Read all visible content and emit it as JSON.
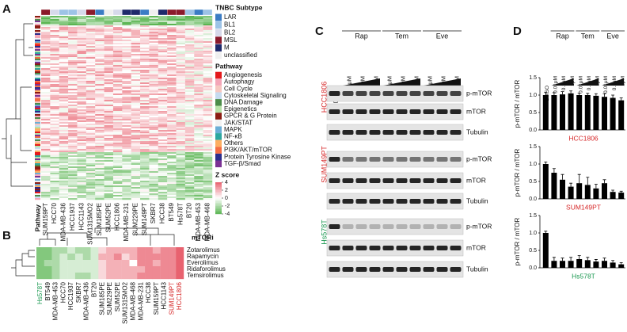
{
  "panel_a": {
    "letter": "A",
    "row_label": "Pathway",
    "columns": [
      "SUM159PT",
      "HCC70",
      "MDA-MB-436",
      "HCC1937",
      "HCC1143",
      "SUM1315MO2",
      "SUM185PE",
      "SUM52PE",
      "HCC1806",
      "MDA-MB-231",
      "SUM229PE",
      "SUM149PT",
      "SKBR7",
      "HCC38",
      "BT549",
      "Hs578T",
      "BT20",
      "MDA-MB-453",
      "MDA-MB-468"
    ],
    "column_subtypes": [
      "MSL",
      "BL2",
      "BL1",
      "BL1",
      "BL2",
      "MSL",
      "LAR",
      "unclassified",
      "BL2",
      "M",
      "M",
      "LAR",
      "unclassified",
      "M",
      "MSL",
      "MSL",
      "BL1",
      "LAR",
      "BL1"
    ],
    "subtype_legend": {
      "title": "TNBC Subtype",
      "items": [
        {
          "label": "LAR",
          "color": "#3b7cc4"
        },
        {
          "label": "BL1",
          "color": "#9dc3e6"
        },
        {
          "label": "BL2",
          "color": "#d6d9ea"
        },
        {
          "label": "MSL",
          "color": "#8b1a2b"
        },
        {
          "label": "M",
          "color": "#1f2a6b"
        },
        {
          "label": "unclassified",
          "color": "#efefef"
        }
      ]
    },
    "pathway_legend": {
      "title": "Pathway",
      "items": [
        {
          "label": "Angiogenesis",
          "color": "#e41a1c"
        },
        {
          "label": "Autophagy",
          "color": "#f4a6b8"
        },
        {
          "label": "Cell Cycle",
          "color": "#f6c7c0"
        },
        {
          "label": "Cytoskeletal Signaling",
          "color": "#c6dbef"
        },
        {
          "label": "DNA Damage",
          "color": "#4c8c4a"
        },
        {
          "label": "Epigenetics",
          "color": "#b7e2a8"
        },
        {
          "label": "GPCR & G Protein",
          "color": "#8c1c13"
        },
        {
          "label": "JAK/STAT",
          "color": "#f2f2f2"
        },
        {
          "label": "MAPK",
          "color": "#6baed6"
        },
        {
          "label": "NF-κB",
          "color": "#2ca7a0"
        },
        {
          "label": "Others",
          "color": "#fdae61"
        },
        {
          "label": "PI3K/AKT/mTOR",
          "color": "#f46d43"
        },
        {
          "label": "Protein Tyrosine Kinase",
          "color": "#2b2d8c"
        },
        {
          "label": "TGF-β/Smad",
          "color": "#7b3294"
        }
      ]
    },
    "zscore": {
      "title": "Z score",
      "ticks": [
        4,
        2,
        0,
        -2,
        -4
      ]
    }
  },
  "panel_b": {
    "letter": "B",
    "title": "mTORi",
    "columns": [
      {
        "label": "Hs578T",
        "color": "#1a9850"
      },
      {
        "label": "BT549"
      },
      {
        "label": "MDA-MB-453"
      },
      {
        "label": "HCC70"
      },
      {
        "label": "HCC1937"
      },
      {
        "label": "SKBR7"
      },
      {
        "label": "MDA-MB-436"
      },
      {
        "label": "BT20"
      },
      {
        "label": "SUM185PE"
      },
      {
        "label": "SUM229PE"
      },
      {
        "label": "SUM52PE"
      },
      {
        "label": "SUM1315MO2"
      },
      {
        "label": "MDA-MB-468"
      },
      {
        "label": "MDA-MB-231"
      },
      {
        "label": "HCC38"
      },
      {
        "label": "SUM159PT"
      },
      {
        "label": "HCC1143"
      },
      {
        "label": "SUM149PT",
        "color": "#d62728"
      },
      {
        "label": "HCC1806",
        "color": "#d62728"
      }
    ],
    "rows": [
      {
        "label": "Zotarolimus",
        "values": [
          -3,
          -3,
          -2,
          -2,
          -1,
          -2,
          -2,
          -1,
          1,
          2,
          2,
          2,
          2,
          3,
          3,
          2,
          3,
          3,
          4
        ]
      },
      {
        "label": "Rapamycin",
        "values": [
          -3,
          -3,
          -2,
          -1,
          -2,
          -1,
          -2,
          -1,
          2,
          2,
          3,
          1,
          2,
          3,
          3,
          3,
          3,
          3,
          4
        ]
      },
      {
        "label": "Everolimus",
        "values": [
          -3,
          -2,
          -2,
          -1,
          -1,
          -1,
          -1,
          -1,
          1,
          2,
          2,
          2,
          0,
          3,
          3,
          2,
          3,
          3,
          4
        ]
      },
      {
        "label": "Ridaforolimus",
        "values": [
          -3,
          -3,
          -2,
          -1,
          -1,
          -1,
          -1,
          -1,
          1,
          2,
          2,
          2,
          2,
          2,
          3,
          3,
          3,
          3,
          4
        ]
      },
      {
        "label": "Temsirolimus",
        "values": [
          -3,
          -3,
          -2,
          -1,
          -1,
          -2,
          -2,
          -1,
          1,
          2,
          2,
          2,
          2,
          3,
          3,
          3,
          3,
          3,
          4
        ]
      }
    ]
  },
  "panel_c": {
    "letter": "C",
    "control": "DMSO",
    "groups": [
      "Rap",
      "Tem",
      "Eve"
    ],
    "concentrations": [
      "0.01μM",
      "0.1μM",
      "1μM"
    ],
    "cell_lines": [
      {
        "label": "HCC1806",
        "color": "#d62728"
      },
      {
        "label": "SUM149PT",
        "color": "#d62728"
      },
      {
        "label": "Hs578T",
        "color": "#1a9850"
      }
    ],
    "blots": [
      "p-mTOR",
      "mTOR",
      "Tubulin"
    ]
  },
  "panel_d": {
    "letter": "D",
    "control": "DMSO",
    "groups": [
      "Rap",
      "Tem",
      "Eve"
    ],
    "concentrations": [
      "0.01μM",
      "0.1μM",
      "1μM"
    ],
    "y_label": "p-mTOR / mTOR",
    "ylim": [
      0,
      1.5
    ],
    "yticks": [
      {
        "value": 0,
        "label": "0.0"
      },
      {
        "value": 0.5,
        "label": "0.5"
      },
      {
        "value": 1,
        "label": "1.0"
      },
      {
        "value": 1.5,
        "label": "1.5"
      }
    ],
    "charts": [
      {
        "cell_line": "HCC1806",
        "color": "#d62728",
        "values": [
          1.0,
          1.0,
          1.02,
          1.05,
          1.0,
          1.0,
          0.98,
          0.95,
          0.92,
          0.85
        ],
        "errors": [
          0.08,
          0.07,
          0.08,
          0.07,
          0.06,
          0.05,
          0.06,
          0.09,
          0.08,
          0.07
        ]
      },
      {
        "cell_line": "SUM149PT",
        "color": "#d62728",
        "values": [
          1.0,
          0.75,
          0.55,
          0.35,
          0.45,
          0.4,
          0.3,
          0.45,
          0.2,
          0.18
        ],
        "errors": [
          0.06,
          0.12,
          0.15,
          0.1,
          0.25,
          0.22,
          0.12,
          0.1,
          0.05,
          0.04
        ]
      },
      {
        "cell_line": "Hs578T",
        "color": "#1a9850",
        "values": [
          1.0,
          0.2,
          0.2,
          0.2,
          0.25,
          0.22,
          0.18,
          0.2,
          0.15,
          0.1
        ],
        "errors": [
          0.05,
          0.1,
          0.08,
          0.1,
          0.1,
          0.08,
          0.06,
          0.08,
          0.06,
          0.05
        ]
      }
    ]
  }
}
